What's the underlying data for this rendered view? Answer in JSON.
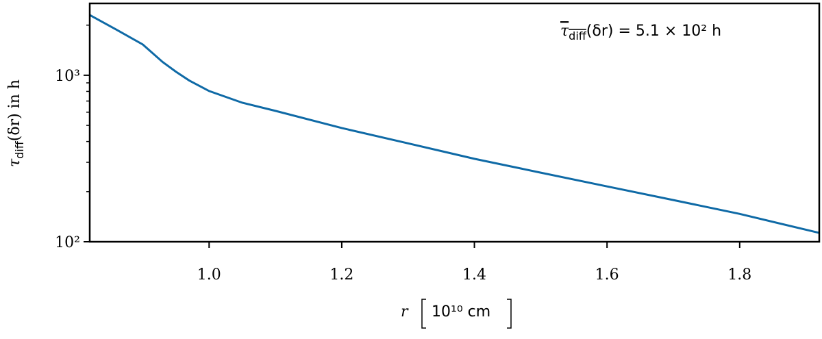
{
  "chart_data": {
    "type": "line",
    "x": [
      0.82,
      0.86,
      0.9,
      0.93,
      0.95,
      0.97,
      1.0,
      1.05,
      1.1,
      1.2,
      1.3,
      1.4,
      1.5,
      1.6,
      1.7,
      1.8,
      1.92
    ],
    "series": [
      {
        "color": "#0f6aa6",
        "values": [
          2300,
          1880,
          1530,
          1200,
          1050,
          930,
          804,
          684,
          611,
          482,
          390,
          315,
          260,
          215,
          178,
          147,
          113
        ]
      }
    ],
    "xlim": [
      0.82,
      1.92
    ],
    "xticks": [
      1.0,
      1.2,
      1.4,
      1.6,
      1.8
    ],
    "xtick_labels": [
      "1.0",
      "1.2",
      "1.4",
      "1.6",
      "1.8"
    ],
    "ylim": [
      100,
      2700
    ],
    "log_y": true,
    "yticks": [
      {
        "value": 100,
        "label": "10²"
      },
      {
        "value": 1000,
        "label": "10³"
      }
    ],
    "yminorticks": [
      200,
      300,
      400,
      500,
      600,
      700,
      800,
      900,
      2000
    ],
    "ylabel": {
      "symbol": "τ",
      "subscript": "diff",
      "rest": "(δr) in h"
    },
    "xlabel": {
      "symbol": "r",
      "unit": "10¹⁰ cm"
    },
    "annotation": {
      "symbol": "τ",
      "subscript": "diff",
      "rest": "(δr) = 5.1 × 10² h"
    }
  }
}
